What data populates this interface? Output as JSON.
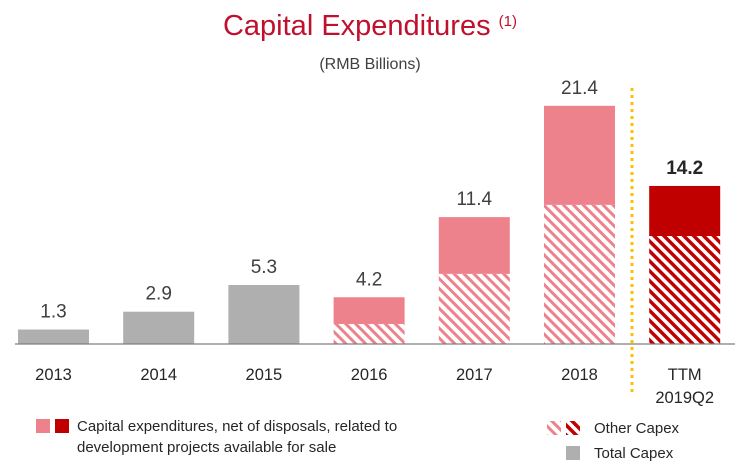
{
  "title": "Capital Expenditures",
  "title_note": "(1)",
  "subtitle": "(RMB Billions)",
  "colors": {
    "title": "#C0102E",
    "net_capex": "#EE828C",
    "net_capex_highlight": "#C00000",
    "total_capex": "#AFAFAF",
    "divider": "#FFC000"
  },
  "legend": {
    "net_capex_line1": "Capital expenditures, net of disposals, related to",
    "net_capex_line2": "development projects available for sale",
    "other_capex": "Other Capex",
    "total_capex": "Total Capex"
  },
  "chart_data": {
    "type": "bar",
    "stacked": true,
    "categories": [
      "2013",
      "2014",
      "2015",
      "2016",
      "2017",
      "2018",
      "TTM 2019Q2"
    ],
    "totals": [
      1.3,
      2.9,
      5.3,
      4.2,
      11.4,
      21.4,
      14.2
    ],
    "total_labels": [
      "1.3",
      "2.9",
      "5.3",
      "4.2",
      "11.4",
      "21.4",
      "14.2"
    ],
    "series": [
      {
        "name": "Total Capex",
        "values": [
          1.3,
          2.9,
          5.3,
          null,
          null,
          null,
          null
        ]
      },
      {
        "name": "Other Capex",
        "values": [
          null,
          null,
          null,
          1.8,
          6.3,
          12.5,
          9.7
        ]
      },
      {
        "name": "Capital expenditures, net of disposals, related to development projects available for sale",
        "values": [
          null,
          null,
          null,
          2.4,
          5.1,
          8.9,
          4.5
        ]
      }
    ],
    "highlight_category": "TTM 2019Q2",
    "ylim": [
      0,
      23
    ],
    "grid": false,
    "legend_position": "bottom"
  }
}
